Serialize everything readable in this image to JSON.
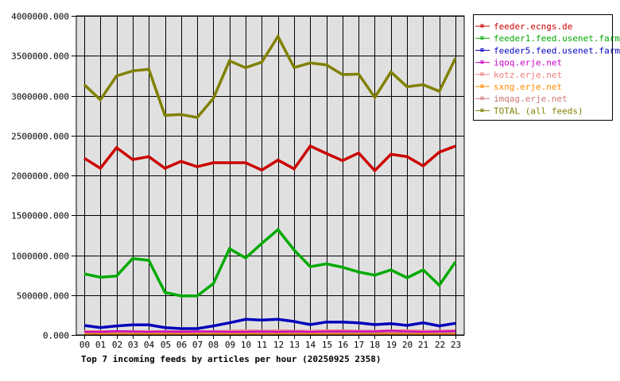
{
  "chart_data": {
    "type": "line",
    "title": "Top 7 incoming feeds by articles per hour (20250925 2358)",
    "xlabel": "",
    "ylabel": "",
    "ylim": [
      0,
      4000000
    ],
    "grid": true,
    "legend_position": "right",
    "x": [
      "00",
      "01",
      "02",
      "03",
      "04",
      "05",
      "06",
      "07",
      "08",
      "09",
      "10",
      "11",
      "12",
      "13",
      "14",
      "15",
      "16",
      "17",
      "18",
      "19",
      "20",
      "21",
      "22",
      "23"
    ],
    "y_ticks": [
      "0.000",
      "500000.000",
      "1000000.000",
      "1500000.000",
      "2000000.000",
      "2500000.000",
      "3000000.000",
      "3500000.000",
      "4000000.000"
    ],
    "series": [
      {
        "name": "feeder.ecngs.de",
        "color": "#cc0000",
        "values": [
          2216000,
          2090000,
          2348000,
          2199000,
          2236000,
          2090000,
          2176000,
          2109000,
          2159000,
          2159000,
          2159000,
          2067000,
          2192000,
          2083000,
          2368000,
          2275000,
          2186000,
          2282000,
          2060000,
          2265000,
          2236000,
          2119000,
          2292000,
          2368000
        ]
      },
      {
        "name": "feeder1.feed.usenet.farm",
        "color": "#00aa00",
        "values": [
          766000,
          723000,
          739000,
          958000,
          935000,
          534000,
          490000,
          490000,
          644000,
          1082000,
          965000,
          1147000,
          1320000,
          1065000,
          856000,
          892000,
          849000,
          789000,
          749000,
          816000,
          716000,
          816000,
          624000,
          915000
        ]
      },
      {
        "name": "feeder5.feed.usenet.farm",
        "color": "#0000bb",
        "values": [
          119000,
          93000,
          113000,
          126000,
          126000,
          93000,
          80000,
          80000,
          113000,
          152000,
          196000,
          186000,
          196000,
          169000,
          129000,
          162000,
          162000,
          152000,
          129000,
          142000,
          119000,
          152000,
          113000,
          146000
        ]
      },
      {
        "name": "iqoq.erje.net",
        "color": "#cc00cc",
        "values": [
          40000,
          40000,
          50000,
          45000,
          40000,
          45000,
          40000,
          45000,
          45000,
          40000,
          40000,
          45000,
          40000,
          45000,
          40000,
          45000,
          45000,
          45000,
          45000,
          55000,
          45000,
          40000,
          45000,
          50000
        ]
      },
      {
        "name": "kotz.erje.net",
        "color": "#f08080",
        "values": [
          35000,
          35000,
          35000,
          35000,
          35000,
          35000,
          35000,
          35000,
          35000,
          40000,
          45000,
          40000,
          45000,
          40000,
          40000,
          45000,
          45000,
          40000,
          40000,
          45000,
          45000,
          40000,
          40000,
          45000
        ]
      },
      {
        "name": "sxng.erje.net",
        "color": "#ff8800",
        "values": [
          10000,
          10000,
          10000,
          10000,
          10000,
          10000,
          10000,
          10000,
          10000,
          10000,
          10000,
          10000,
          10000,
          10000,
          10000,
          10000,
          10000,
          10000,
          10000,
          10000,
          10000,
          10000,
          10000,
          10000
        ]
      },
      {
        "name": "imqag.erje.net",
        "color": "#cc7777",
        "values": [
          20000,
          20000,
          20000,
          20000,
          20000,
          20000,
          20000,
          20000,
          20000,
          20000,
          20000,
          20000,
          20000,
          20000,
          20000,
          20000,
          20000,
          20000,
          20000,
          20000,
          20000,
          20000,
          20000,
          20000
        ]
      },
      {
        "name": "TOTAL (all feeds)",
        "color": "#808000",
        "values": [
          3137000,
          2948000,
          3247000,
          3310000,
          3330000,
          2753000,
          2763000,
          2726000,
          2965000,
          3436000,
          3350000,
          3420000,
          3741000,
          3353000,
          3410000,
          3386000,
          3264000,
          3270000,
          2978000,
          3297000,
          3111000,
          3137000,
          3055000,
          3470000
        ]
      }
    ]
  }
}
